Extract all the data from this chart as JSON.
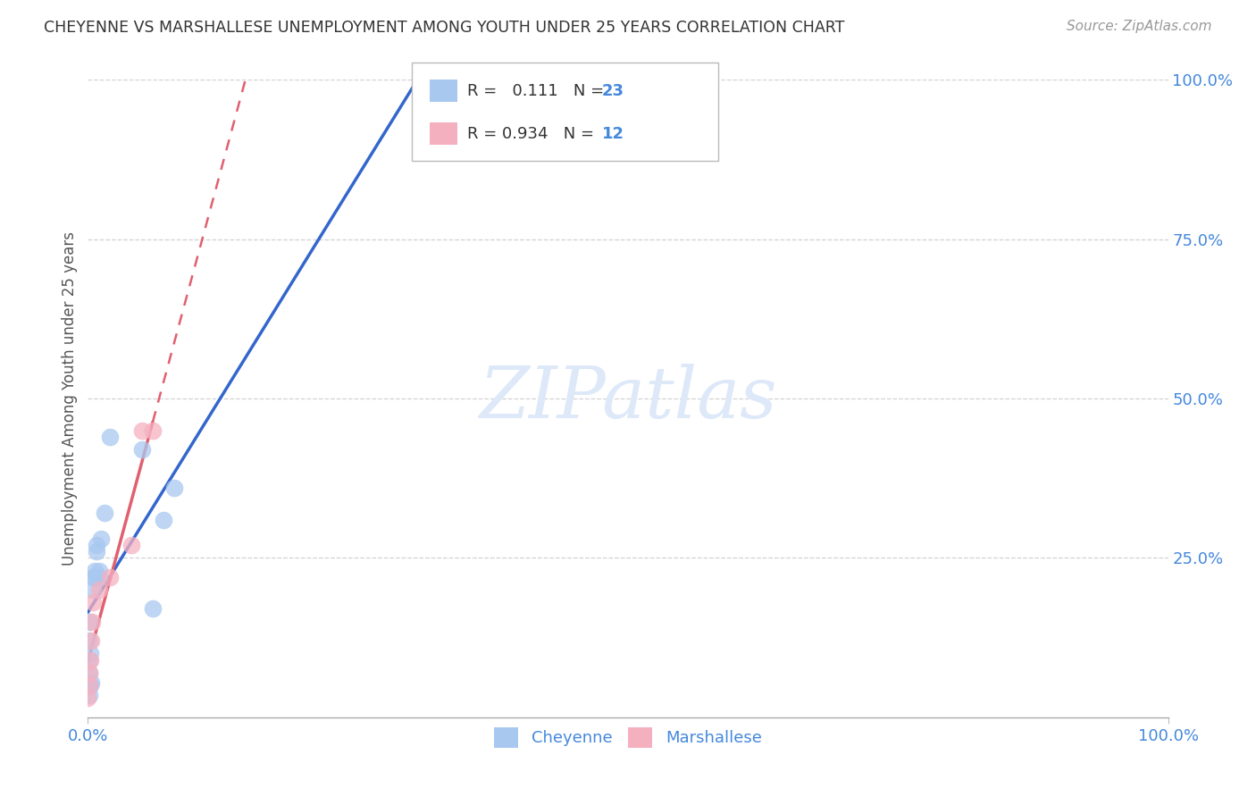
{
  "title": "CHEYENNE VS MARSHALLESE UNEMPLOYMENT AMONG YOUTH UNDER 25 YEARS CORRELATION CHART",
  "source": "Source: ZipAtlas.com",
  "ylabel": "Unemployment Among Youth under 25 years",
  "cheyenne_x": [
    0.001,
    0.002,
    0.003,
    0.001,
    0.001,
    0.002,
    0.001,
    0.001,
    0.005,
    0.005,
    0.006,
    0.006,
    0.008,
    0.008,
    0.01,
    0.01,
    0.012,
    0.015,
    0.02,
    0.05,
    0.06,
    0.07,
    0.08
  ],
  "cheyenne_y": [
    0.035,
    0.05,
    0.055,
    0.07,
    0.09,
    0.1,
    0.12,
    0.15,
    0.2,
    0.22,
    0.22,
    0.23,
    0.26,
    0.27,
    0.22,
    0.23,
    0.28,
    0.32,
    0.44,
    0.42,
    0.17,
    0.31,
    0.36
  ],
  "marshallese_x": [
    0.0,
    0.001,
    0.001,
    0.002,
    0.003,
    0.004,
    0.005,
    0.01,
    0.02,
    0.04,
    0.05,
    0.06
  ],
  "marshallese_y": [
    0.03,
    0.05,
    0.07,
    0.09,
    0.12,
    0.15,
    0.18,
    0.2,
    0.22,
    0.27,
    0.45,
    0.45
  ],
  "cheyenne_R": 0.111,
  "cheyenne_N": 23,
  "marshallese_R": 0.934,
  "marshallese_N": 12,
  "cheyenne_color": "#a8c8f0",
  "marshallese_color": "#f5b0c0",
  "cheyenne_line_color": "#3366cc",
  "marshallese_line_color": "#e06070",
  "watermark": "ZIPatlas",
  "watermark_color": "#dde8f8",
  "axis_label_color": "#4488dd",
  "title_color": "#333333",
  "background_color": "#ffffff",
  "grid_color": "#cccccc",
  "xlim": [
    0.0,
    1.0
  ],
  "ylim": [
    0.0,
    1.0
  ],
  "xtick_positions": [
    0.0,
    1.0
  ],
  "xtick_labels": [
    "0.0%",
    "100.0%"
  ],
  "ytick_positions": [
    0.25,
    0.5,
    0.75,
    1.0
  ],
  "ytick_labels": [
    "25.0%",
    "50.0%",
    "75.0%",
    "100.0%"
  ]
}
